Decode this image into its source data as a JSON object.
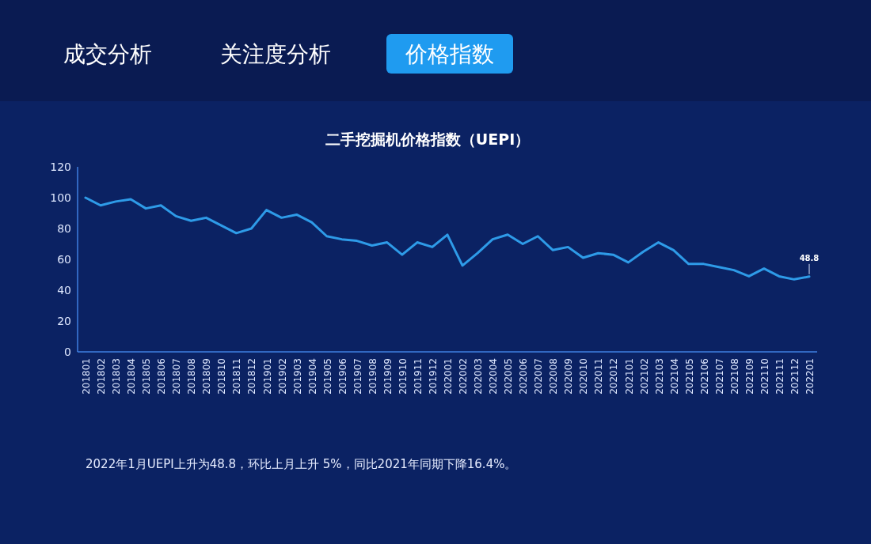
{
  "chart_data": {
    "type": "line",
    "title": "二手挖掘机价格指数（UEPI）",
    "categories": [
      "201801",
      "201802",
      "201803",
      "201804",
      "201805",
      "201806",
      "201807",
      "201808",
      "201809",
      "201810",
      "201811",
      "201812",
      "201901",
      "201902",
      "201903",
      "201904",
      "201905",
      "201906",
      "201907",
      "201908",
      "201909",
      "201910",
      "201911",
      "201912",
      "202001",
      "202002",
      "202003",
      "202004",
      "202005",
      "202006",
      "202007",
      "202008",
      "202009",
      "202010",
      "202011",
      "202012",
      "202101",
      "202102",
      "202103",
      "202104",
      "202105",
      "202106",
      "202107",
      "202108",
      "202109",
      "202110",
      "202111",
      "202112",
      "202201"
    ],
    "series": [
      {
        "color": "#2e9be8",
        "values": [
          100,
          95,
          97.5,
          99,
          93,
          95,
          88,
          85,
          87,
          82,
          77,
          80,
          92,
          87,
          89,
          84,
          75,
          73,
          72,
          69,
          71,
          63,
          71,
          68,
          76,
          56,
          64,
          73,
          76,
          70,
          75,
          66,
          68,
          61,
          64,
          63,
          58,
          65,
          71,
          66,
          57,
          57,
          55,
          53,
          49,
          54,
          49,
          47,
          48.8
        ],
        "value_labels": [
          null,
          null,
          null,
          null,
          null,
          null,
          null,
          null,
          null,
          null,
          null,
          null,
          null,
          null,
          null,
          null,
          null,
          null,
          null,
          null,
          null,
          null,
          null,
          null,
          null,
          null,
          null,
          null,
          null,
          null,
          null,
          null,
          null,
          null,
          null,
          null,
          null,
          null,
          null,
          null,
          null,
          null,
          null,
          null,
          null,
          null,
          null,
          null,
          "48.8"
        ]
      }
    ],
    "ylim": [
      0,
      120
    ],
    "yticks": [
      0,
      20,
      40,
      60,
      80,
      100,
      120
    ],
    "grid": false,
    "annotations": [
      "成交分析",
      "关注度分析",
      "价格指数",
      "2022年1月UEPI上升为48.8，环比上月上升 5%，同比2021年同期下降16.4%。"
    ]
  }
}
